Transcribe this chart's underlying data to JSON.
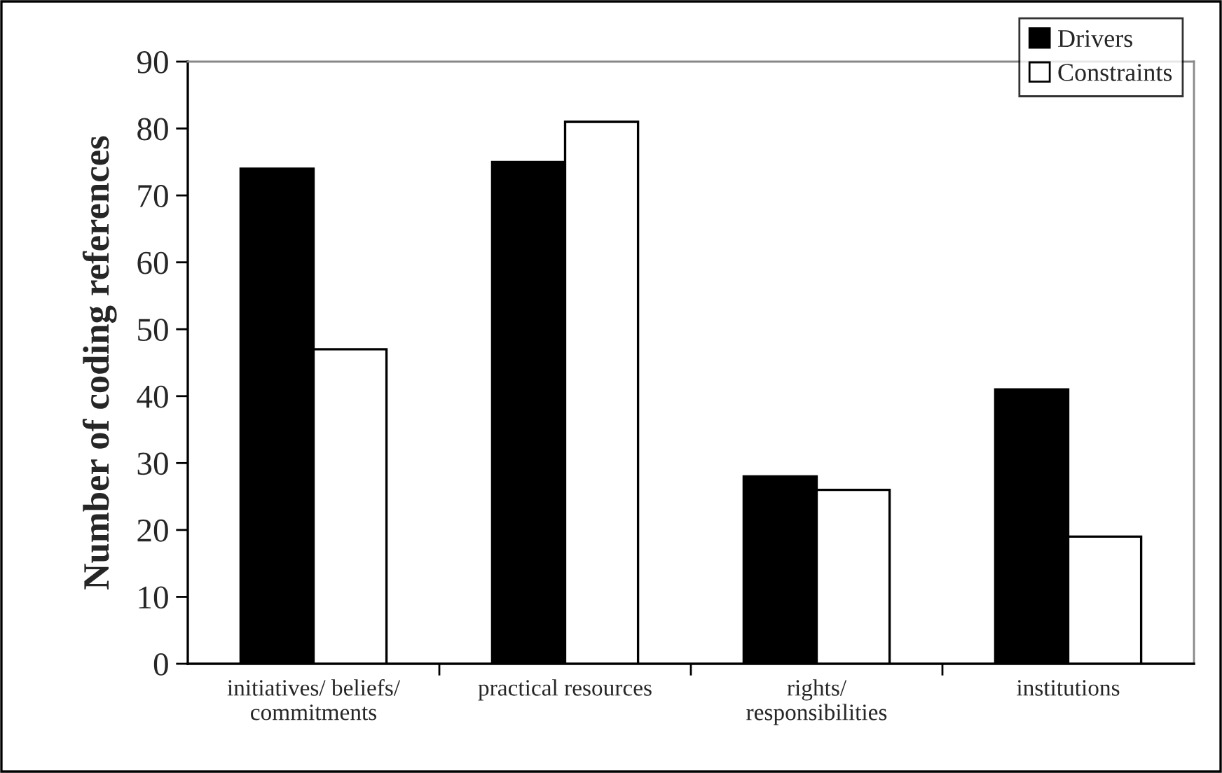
{
  "chart_data": {
    "type": "bar",
    "ylabel": "Number of coding references",
    "categories": [
      "initiatives/ beliefs/\ncommitments",
      "practical resources",
      "rights/\nresponsibilities",
      "institutions"
    ],
    "series": [
      {
        "name": "Drivers",
        "color": "#000000",
        "values": [
          74,
          75,
          28,
          41
        ]
      },
      {
        "name": "Constraints",
        "color": "#ffffff",
        "values": [
          47,
          81,
          26,
          19
        ]
      }
    ],
    "ylim": [
      0,
      90
    ],
    "yticks": [
      0,
      10,
      20,
      30,
      40,
      50,
      60,
      70,
      80,
      90
    ],
    "grid": false,
    "legend": "top right"
  }
}
